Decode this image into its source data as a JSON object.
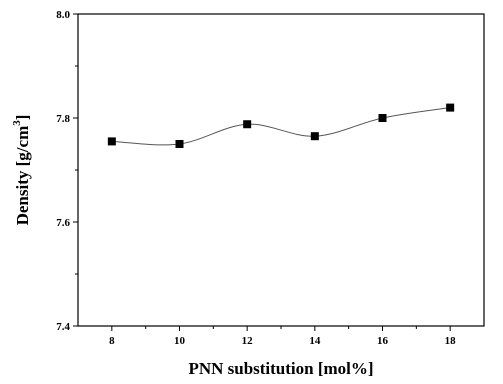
{
  "chart_data": {
    "type": "scatter",
    "xlabel": "PNN substitution [mol%]",
    "ylabel_text": "Density [g/cm",
    "ylabel_sup": "3",
    "ylabel_close": "]",
    "x": [
      8,
      10,
      12,
      14,
      16,
      18
    ],
    "y": [
      7.755,
      7.75,
      7.788,
      7.765,
      7.8,
      7.82
    ],
    "xlim": [
      7,
      19
    ],
    "ylim": [
      7.4,
      8.0
    ],
    "xticks": [
      8,
      10,
      12,
      14,
      16,
      18
    ],
    "xtick_labels": [
      "8",
      "10",
      "12",
      "14",
      "16",
      "18"
    ],
    "yticks": [
      7.4,
      7.6,
      7.8,
      8.0
    ],
    "ytick_labels": [
      "7.4",
      "7.6",
      "7.8",
      "8.0"
    ],
    "marker": "square",
    "smooth_curve": true,
    "grid": false,
    "colors": {
      "marker": "#000000",
      "curve": "#555555",
      "axes": "#000000"
    }
  }
}
